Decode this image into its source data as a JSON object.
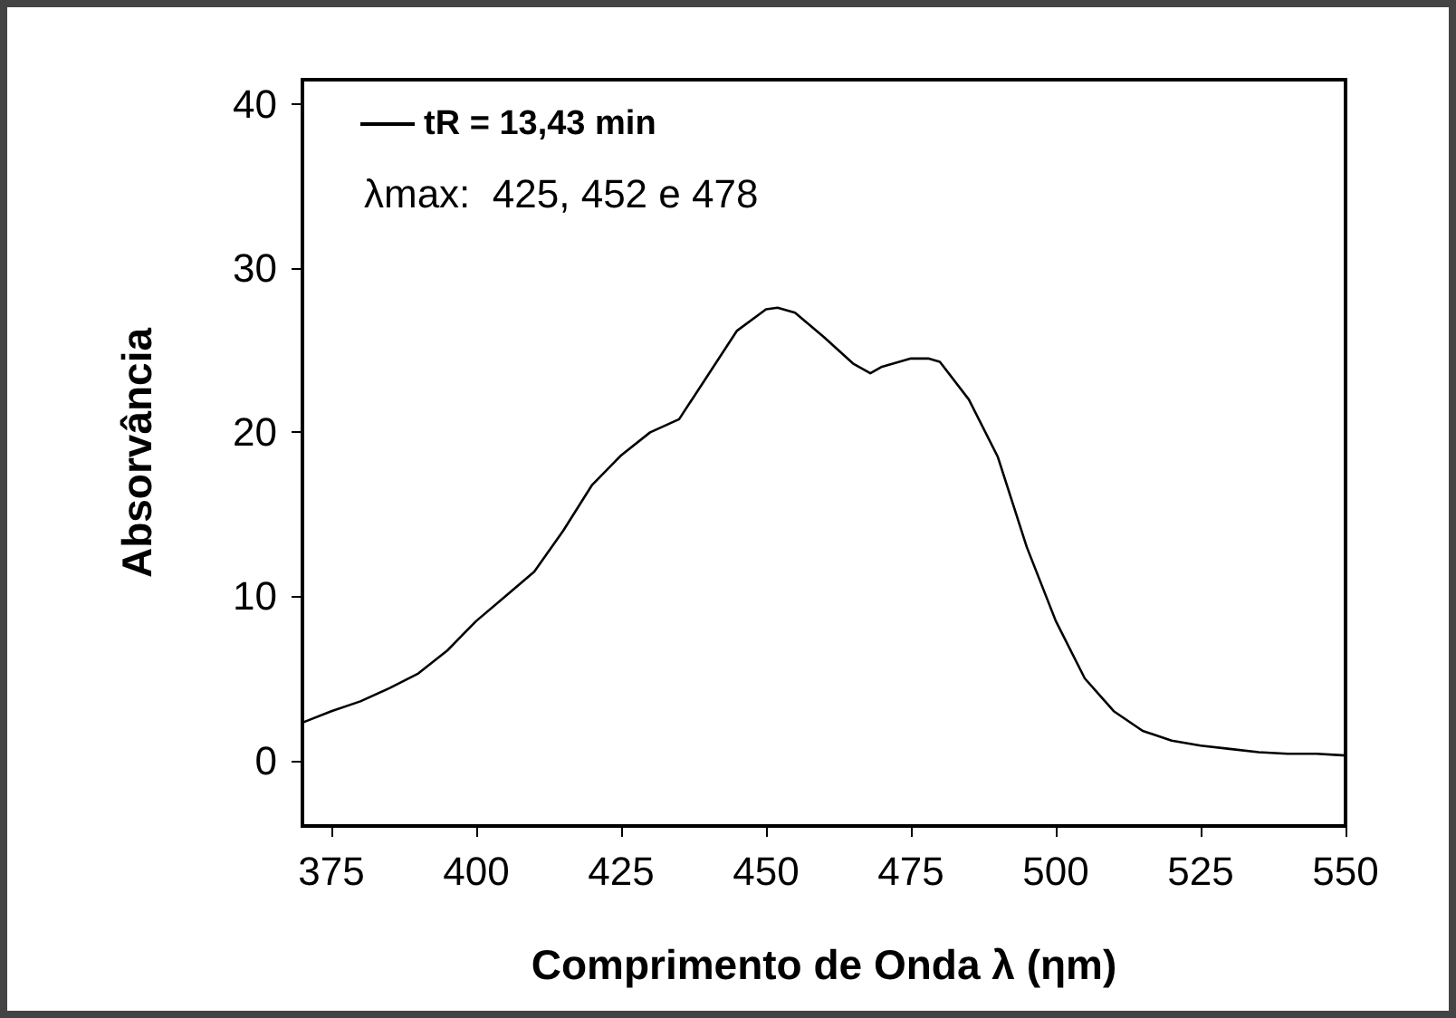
{
  "chart_data": {
    "type": "line",
    "xlabel": "Comprimento de Onda λ (ηm)",
    "ylabel": "Absorvância",
    "x": [
      370,
      375,
      380,
      385,
      390,
      395,
      400,
      405,
      410,
      415,
      420,
      425,
      430,
      435,
      440,
      445,
      450,
      452,
      455,
      460,
      465,
      468,
      470,
      475,
      478,
      480,
      485,
      490,
      495,
      500,
      505,
      510,
      515,
      520,
      525,
      530,
      535,
      540,
      545,
      550
    ],
    "series": [
      {
        "name": "tR = 13,43 min",
        "color": "#000000",
        "values": [
          2.3,
          3.0,
          3.6,
          4.4,
          5.3,
          6.7,
          8.5,
          10.0,
          11.5,
          14.0,
          16.8,
          18.6,
          20.0,
          20.8,
          23.5,
          26.2,
          27.5,
          27.6,
          27.3,
          25.8,
          24.2,
          23.6,
          24.0,
          24.5,
          24.5,
          24.3,
          22.0,
          18.5,
          13.0,
          8.5,
          5.0,
          3.0,
          1.8,
          1.2,
          0.9,
          0.7,
          0.5,
          0.4,
          0.4,
          0.3
        ]
      }
    ],
    "annotations": [
      "λmax:  425, 452 e 478"
    ],
    "xlim": [
      370,
      550
    ],
    "xticks": [
      375,
      400,
      425,
      450,
      475,
      500,
      525,
      550
    ],
    "ylim": [
      -4,
      41.5
    ],
    "yticks": [
      0,
      10,
      20,
      30,
      40
    ],
    "grid": false,
    "legend": "top left",
    "marker": "none",
    "line_style": "solid"
  }
}
